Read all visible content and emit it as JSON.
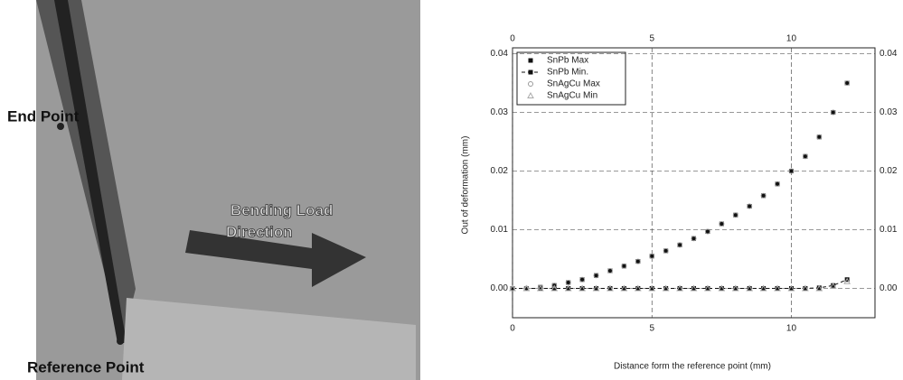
{
  "model_labels": {
    "end_point": "End Point",
    "load_direction": [
      "Bending Load",
      "Direction"
    ],
    "reference_point": "Reference Point"
  },
  "chart_data": {
    "type": "scatter",
    "x_label": "Distance form the reference point (mm)",
    "y_label": "Out of deformation (mm)",
    "x": [
      0,
      0.5,
      1,
      1.5,
      2,
      2.5,
      3,
      3.5,
      4,
      4.5,
      5,
      5.5,
      6,
      6.5,
      7,
      7.5,
      8,
      8.5,
      9,
      9.5,
      10,
      10.5,
      11,
      11.5,
      12
    ],
    "series": [
      {
        "name": "SnPb Max",
        "color": "#111111",
        "marker": "square",
        "dashed": false,
        "values": [
          0,
          0,
          0.0002,
          0.0005,
          0.001,
          0.0015,
          0.0022,
          0.003,
          0.0038,
          0.0046,
          0.0055,
          0.0064,
          0.0074,
          0.0085,
          0.0097,
          0.011,
          0.0125,
          0.014,
          0.0158,
          0.0178,
          0.02,
          0.0225,
          0.0258,
          0.03,
          0.035
        ]
      },
      {
        "name": "SnPb Min.",
        "color": "#111111",
        "marker": "square",
        "dashed": true,
        "values": [
          0,
          0,
          0,
          0,
          0,
          0,
          0,
          0,
          0,
          0,
          0,
          0,
          0,
          0,
          0,
          0,
          0,
          0,
          0,
          0,
          0,
          0,
          0.0001,
          0.0005,
          0.0015
        ]
      },
      {
        "name": "SnAgCu Max",
        "color": "#999999",
        "marker": "circle",
        "dashed": false,
        "values": [
          0,
          0,
          0.0002,
          0.0005,
          0.001,
          0.0015,
          0.0022,
          0.003,
          0.0038,
          0.0046,
          0.0055,
          0.0064,
          0.0074,
          0.0085,
          0.0097,
          0.011,
          0.0125,
          0.014,
          0.0158,
          0.0178,
          0.02,
          0.0225,
          0.0258,
          0.03,
          0.035
        ]
      },
      {
        "name": "SnAgCu Min",
        "color": "#aaaaaa",
        "marker": "triangle",
        "dashed": false,
        "values": [
          0,
          0,
          0,
          0,
          0,
          0,
          0,
          0,
          0,
          0,
          0,
          0,
          0,
          0,
          0,
          0,
          0,
          0,
          0,
          0,
          0,
          0,
          0,
          0.0004,
          0.0012
        ]
      }
    ],
    "xlim": [
      0,
      13
    ],
    "xticks": [
      0,
      5,
      10
    ],
    "ylim": [
      -0.005,
      0.041
    ],
    "yticks": [
      {
        "value": 0,
        "label": "0.00"
      },
      {
        "value": 0.01,
        "label": "0.01"
      },
      {
        "value": 0.02,
        "label": "0.02"
      },
      {
        "value": 0.03,
        "label": "0.03"
      },
      {
        "value": 0.04,
        "label": "0.04"
      }
    ],
    "grid": true,
    "legend": "upper left"
  }
}
